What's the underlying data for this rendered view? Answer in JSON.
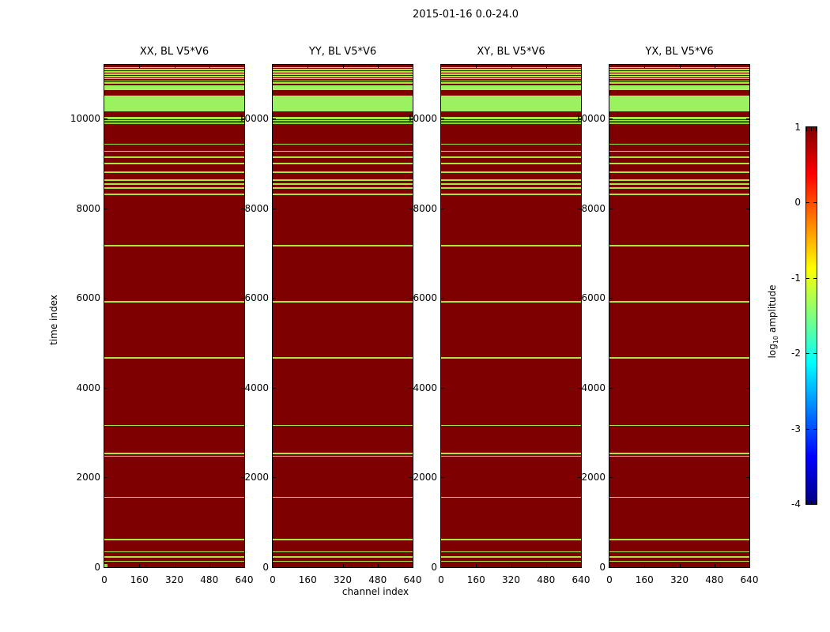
{
  "figure": {
    "title": "2015-01-16 0.0-24.0"
  },
  "axes": {
    "xlabel": "channel index",
    "ylabel": "time index",
    "x_tick_labels": [
      "0",
      "160",
      "320",
      "480",
      "640"
    ],
    "y_tick_labels": [
      "0",
      "2000",
      "4000",
      "6000",
      "8000",
      "10000"
    ]
  },
  "panels": [
    {
      "title": "XX, BL V5*V6"
    },
    {
      "title": "YY, BL V5*V6"
    },
    {
      "title": "XY, BL V5*V6"
    },
    {
      "title": "YX, BL V5*V6"
    }
  ],
  "colorbar": {
    "label_log": "log",
    "label_sub": "10",
    "label_rest": " amplitude",
    "tick_labels": [
      "1",
      "0",
      "-1",
      "-2",
      "-3",
      "-4"
    ]
  },
  "colors": {
    "background_high_amplitude": "#7E0000",
    "flagged_thin_stripe": "#A8E643",
    "flagged_band": "#9CF161",
    "corner_marker": "#8FE24D",
    "axis": "#000000",
    "figure_background": "#FFFFFF"
  },
  "chart_data": {
    "type": "heatmap",
    "title": "2015-01-16 0.0-24.0",
    "subplot_titles": [
      "XX, BL V5*V6",
      "YY, BL V5*V6",
      "XY, BL V5*V6",
      "YX, BL V5*V6"
    ],
    "xlabel": "channel index",
    "ylabel": "time index",
    "xlim": [
      0,
      640
    ],
    "ylim": [
      0,
      11200
    ],
    "x_ticks": [
      0,
      160,
      320,
      480,
      640
    ],
    "y_ticks": [
      0,
      2000,
      4000,
      6000,
      8000,
      10000
    ],
    "colorbar": {
      "label": "log10 amplitude",
      "vmin": -4,
      "vmax": 1,
      "ticks": [
        1,
        0,
        -1,
        -2,
        -3,
        -4
      ],
      "colormap": "jet"
    },
    "background_log10_amplitude": 1,
    "flagged_log10_amplitude": -1.8,
    "note": "Each of the 4 panels shows the same pattern: dark-red (log10 amp ~1) field spanning all 640 channels, crossed by horizontal yellow-green flagged rows; [time_center, time_extent] pairs below",
    "flagged_time_rows": [
      [
        11140,
        30
      ],
      [
        11090,
        30
      ],
      [
        11040,
        30
      ],
      [
        10990,
        30
      ],
      [
        10940,
        30
      ],
      [
        10890,
        30
      ],
      [
        10840,
        30
      ],
      [
        10790,
        30
      ],
      [
        10685,
        100
      ],
      [
        10340,
        360
      ],
      [
        10025,
        28
      ],
      [
        9990,
        28
      ],
      [
        9955,
        28
      ],
      [
        9920,
        28
      ],
      [
        9885,
        28
      ],
      [
        9430,
        28
      ],
      [
        9275,
        28
      ],
      [
        9140,
        28
      ],
      [
        9000,
        28
      ],
      [
        8800,
        28
      ],
      [
        8630,
        28
      ],
      [
        8540,
        28
      ],
      [
        8450,
        28
      ],
      [
        8310,
        28
      ],
      [
        7170,
        28
      ],
      [
        5920,
        28
      ],
      [
        4670,
        28
      ],
      [
        3160,
        28
      ],
      [
        2532,
        26
      ],
      [
        2478,
        26
      ],
      [
        1555,
        28
      ],
      [
        620,
        28
      ],
      [
        340,
        26
      ],
      [
        230,
        26
      ],
      [
        135,
        26
      ]
    ],
    "corner_marker": {
      "panel_index": 0,
      "channel_range": [
        0,
        12
      ],
      "time_range": [
        0,
        70
      ]
    }
  }
}
